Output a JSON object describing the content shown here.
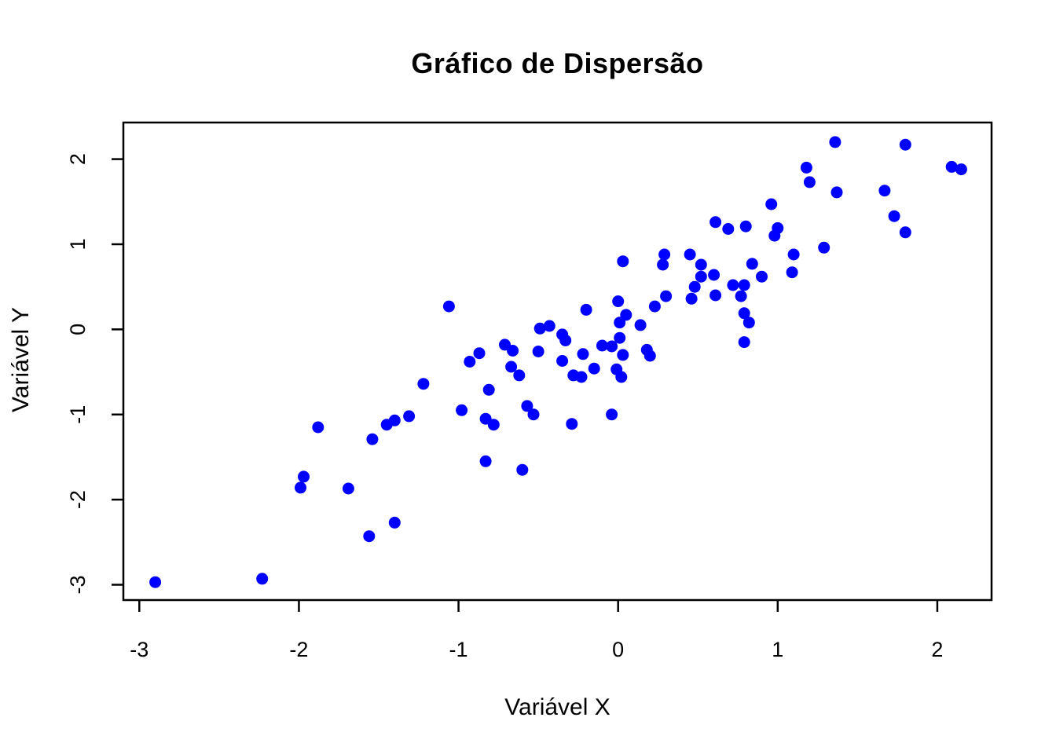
{
  "chart_data": {
    "type": "scatter",
    "title": "Gráfico de Dispersão",
    "xlabel": "Variável X",
    "ylabel": "Variável Y",
    "xlim": [
      -3.1,
      2.34
    ],
    "ylim": [
      -3.18,
      2.43
    ],
    "x_ticks": [
      "-3",
      "-2",
      "-1",
      "0",
      "1",
      "2"
    ],
    "y_ticks": [
      "-3",
      "-2",
      "-1",
      "0",
      "1",
      "2"
    ],
    "grid": false,
    "legend_position": "none",
    "point_color": "#0000FF",
    "axis_color": "#000000",
    "points": [
      [
        -2.9,
        -2.97
      ],
      [
        -2.23,
        -2.93
      ],
      [
        -1.99,
        -1.86
      ],
      [
        -1.97,
        -1.73
      ],
      [
        -1.88,
        -1.15
      ],
      [
        -1.69,
        -1.87
      ],
      [
        -1.56,
        -2.43
      ],
      [
        -1.54,
        -1.29
      ],
      [
        -1.45,
        -1.12
      ],
      [
        -1.4,
        -1.07
      ],
      [
        -1.4,
        -2.27
      ],
      [
        -1.31,
        -1.02
      ],
      [
        -1.22,
        -0.64
      ],
      [
        -1.06,
        0.27
      ],
      [
        -0.98,
        -0.95
      ],
      [
        -0.83,
        -1.05
      ],
      [
        -0.81,
        -0.71
      ],
      [
        -0.78,
        -1.12
      ],
      [
        -0.83,
        -1.55
      ],
      [
        -0.6,
        -1.65
      ],
      [
        -0.57,
        -0.9
      ],
      [
        -0.53,
        -1.0
      ],
      [
        -0.29,
        -1.11
      ],
      [
        -0.04,
        -1.0
      ],
      [
        -0.93,
        -0.38
      ],
      [
        -0.87,
        -0.28
      ],
      [
        -0.71,
        -0.18
      ],
      [
        -0.66,
        -0.25
      ],
      [
        -0.67,
        -0.44
      ],
      [
        -0.62,
        -0.54
      ],
      [
        -0.5,
        -0.26
      ],
      [
        -0.49,
        0.01
      ],
      [
        -0.43,
        0.04
      ],
      [
        -0.35,
        -0.06
      ],
      [
        -0.33,
        -0.13
      ],
      [
        -0.35,
        -0.37
      ],
      [
        -0.28,
        -0.54
      ],
      [
        -0.23,
        -0.56
      ],
      [
        -0.22,
        -0.29
      ],
      [
        -0.2,
        0.23
      ],
      [
        -0.15,
        -0.46
      ],
      [
        -0.1,
        -0.19
      ],
      [
        -0.04,
        -0.2
      ],
      [
        -0.01,
        -0.47
      ],
      [
        0.0,
        0.33
      ],
      [
        0.01,
        -0.1
      ],
      [
        0.01,
        0.08
      ],
      [
        0.02,
        -0.56
      ],
      [
        0.03,
        -0.3
      ],
      [
        0.03,
        0.8
      ],
      [
        0.05,
        0.17
      ],
      [
        0.14,
        0.05
      ],
      [
        0.18,
        -0.24
      ],
      [
        0.2,
        -0.31
      ],
      [
        0.23,
        0.27
      ],
      [
        0.28,
        0.76
      ],
      [
        0.29,
        0.88
      ],
      [
        0.3,
        0.39
      ],
      [
        0.45,
        0.88
      ],
      [
        0.52,
        0.76
      ],
      [
        0.52,
        0.62
      ],
      [
        0.48,
        0.5
      ],
      [
        0.46,
        0.36
      ],
      [
        0.6,
        0.64
      ],
      [
        0.61,
        0.4
      ],
      [
        0.61,
        1.26
      ],
      [
        0.69,
        1.18
      ],
      [
        0.72,
        0.52
      ],
      [
        0.77,
        0.39
      ],
      [
        0.79,
        0.52
      ],
      [
        0.79,
        0.19
      ],
      [
        0.82,
        0.08
      ],
      [
        0.79,
        -0.15
      ],
      [
        0.8,
        1.21
      ],
      [
        0.84,
        0.77
      ],
      [
        0.9,
        0.62
      ],
      [
        0.96,
        1.47
      ],
      [
        0.98,
        1.1
      ],
      [
        1.0,
        1.19
      ],
      [
        1.09,
        0.67
      ],
      [
        1.1,
        0.88
      ],
      [
        1.18,
        1.9
      ],
      [
        1.2,
        1.73
      ],
      [
        1.29,
        0.96
      ],
      [
        1.36,
        2.2
      ],
      [
        1.37,
        1.61
      ],
      [
        1.67,
        1.63
      ],
      [
        1.73,
        1.33
      ],
      [
        1.8,
        2.17
      ],
      [
        1.8,
        1.14
      ],
      [
        2.09,
        1.91
      ],
      [
        2.15,
        1.88
      ]
    ]
  }
}
